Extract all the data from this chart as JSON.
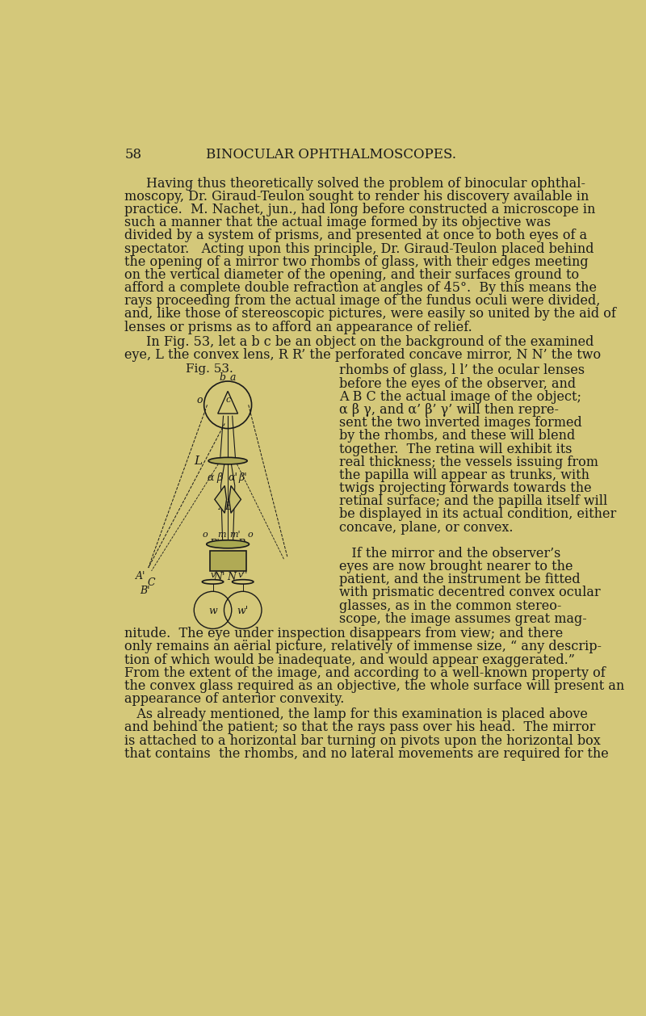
{
  "bg_color": "#d4c87a",
  "text_color": "#1a1a1a",
  "page_number": "58",
  "header": "BINOCULAR OPHTHALMOSCOPES.",
  "font_size_body": 11.5,
  "font_size_header": 12,
  "fig_label": "Fig. 53.",
  "paragraph1": "Having thus theoretically solved the problem of binocular ophthal-\nmoscopy, Dr. Giraud-Teulon sought to render his discovery available in\npractice.  M. Nachet, jun., had long before constructed a microscope in\nsuch a manner that the actual image formed by its objective was\ndivided by a system of prisms, and presented at once to both eyes of a\nspectator.   Acting upon this principle, Dr. Giraud-Teulon placed behind\nthe opening of a mirror two rhombs of glass, with their edges meeting\non the vertical diameter of the opening, and their surfaces ground to\nafford a complete double refraction at angles of 45°.  By this means the\nrays proceeding from the actual image of the fundus oculi were divided,\nand, like those of stereoscopic pictures, were easily so united by the aid of\nlenses or prisms as to afford an appearance of relief.",
  "paragraph2_left": "In Fig. 53, let a b c be an object on the background of the examined\neye, L the convex lens, R R’ the perforated concave mirror, N N’ the two",
  "paragraph2_right_lines": [
    "rhombs of glass, l l’ the ocular lenses",
    "before the eyes of the observer, and",
    "A B C the actual image of the object;",
    "α β γ, and α’ β’ γ’ will then repre-",
    "sent the two inverted images formed",
    "by the rhombs, and these will blend",
    "together.  The retina will exhibit its",
    "real thickness; the vessels issuing from",
    "the papilla will appear as trunks, with",
    "twigs projecting forwards towards the",
    "retinal surface; and the papilla itself will",
    "be displayed in its actual condition, either",
    "concave, plane, or convex.",
    "",
    "   If the mirror and the observer’s",
    "eyes are now brought nearer to the",
    "patient, and the instrument be fitted",
    "with prismatic decentred convex ocular",
    "glasses, as in the common stereo-",
    "scope, the image assumes great mag-"
  ],
  "paragraph3": "nitude.  The eye under inspection disappears from view; and there\nonly remains an aërial picture, relatively of immense size, “ any descrip-\ntion of which would be inadequate, and would appear exaggerated.”\nFrom the extent of the image, and according to a well-known property of\nthe convex glass required as an objective, the whole surface will present an\nappearance of anterior convexity.",
  "paragraph4": "   As already mentioned, the lamp for this examination is placed above\nand behind the patient; so that the rays pass over his head.  The mirror\nis attached to a horizontal bar turning on pivots upon the horizontal box\nthat contains  the rhombs, and no lateral movements are required for the"
}
